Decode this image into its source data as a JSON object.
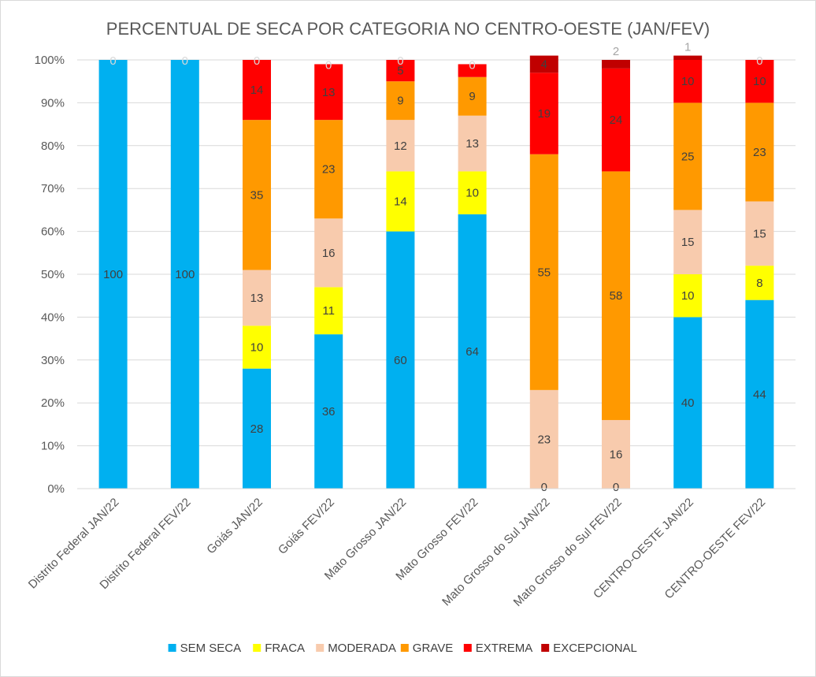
{
  "chart_data": {
    "type": "bar",
    "stacked": true,
    "title": "PERCENTUAL DE SECA POR CATEGORIA NO CENTRO-OESTE (JAN/FEV)",
    "xlabel": "",
    "ylabel": "",
    "ylim": [
      0,
      100
    ],
    "yticks": [
      "0%",
      "10%",
      "20%",
      "30%",
      "40%",
      "50%",
      "60%",
      "70%",
      "80%",
      "90%",
      "100%"
    ],
    "grid": true,
    "legend_position": "bottom",
    "categories": [
      "Distrito Federal JAN/22",
      "Distrito Federal FEV/22",
      "Goiás JAN/22",
      "Goiás FEV/22",
      "Mato Grosso JAN/22",
      "Mato Grosso FEV/22",
      "Mato Grosso do Sul JAN/22",
      "Mato Grosso do Sul FEV/22",
      "CENTRO-OESTE JAN/22",
      "CENTRO-OESTE FEV/22"
    ],
    "series": [
      {
        "name": "SEM SECA",
        "color": "#00b0f0",
        "label_color": "#404040",
        "values": [
          100,
          100,
          28,
          36,
          60,
          64,
          0,
          0,
          40,
          44
        ]
      },
      {
        "name": "FRACA",
        "color": "#ffff00",
        "label_color": "#404040",
        "values": [
          0,
          0,
          10,
          11,
          14,
          10,
          0,
          0,
          10,
          8
        ]
      },
      {
        "name": "MODERADA",
        "color": "#f8cbad",
        "label_color": "#404040",
        "values": [
          0,
          0,
          13,
          16,
          12,
          13,
          23,
          16,
          15,
          15
        ]
      },
      {
        "name": "GRAVE",
        "color": "#ff9900",
        "label_color": "#404040",
        "values": [
          0,
          0,
          35,
          23,
          9,
          9,
          55,
          58,
          25,
          23
        ]
      },
      {
        "name": "EXTREMA",
        "color": "#ff0000",
        "label_color": "#404040",
        "values": [
          0,
          0,
          14,
          13,
          5,
          3,
          19,
          24,
          10,
          10
        ]
      },
      {
        "name": "EXCEPCIONAL",
        "color": "#c00000",
        "label_color": "#404040",
        "values": [
          0,
          0,
          0,
          0,
          0,
          0,
          4,
          2,
          1,
          0
        ]
      }
    ],
    "data_labels": {
      "SEM SECA": [
        "100",
        "100",
        "28",
        "36",
        "60",
        "64",
        "0",
        "0",
        "40",
        "44"
      ],
      "FRACA": [
        "",
        "",
        "10",
        "11",
        "14",
        "10",
        "",
        "",
        "10",
        "8"
      ],
      "MODERADA": [
        "",
        "",
        "13",
        "16",
        "12",
        "13",
        "23",
        "16",
        "15",
        "15"
      ],
      "GRAVE": [
        "",
        "",
        "35",
        "23",
        "9",
        "9",
        "55",
        "58",
        "25",
        "23"
      ],
      "EXTREMA": [
        "",
        "",
        "14",
        "13",
        "5",
        "",
        "19",
        "24",
        "10",
        "10"
      ],
      "EXCEPCIONAL": [
        "0",
        "0",
        "0",
        "0",
        "0",
        "0",
        "4",
        "2",
        "1",
        "0"
      ]
    }
  }
}
